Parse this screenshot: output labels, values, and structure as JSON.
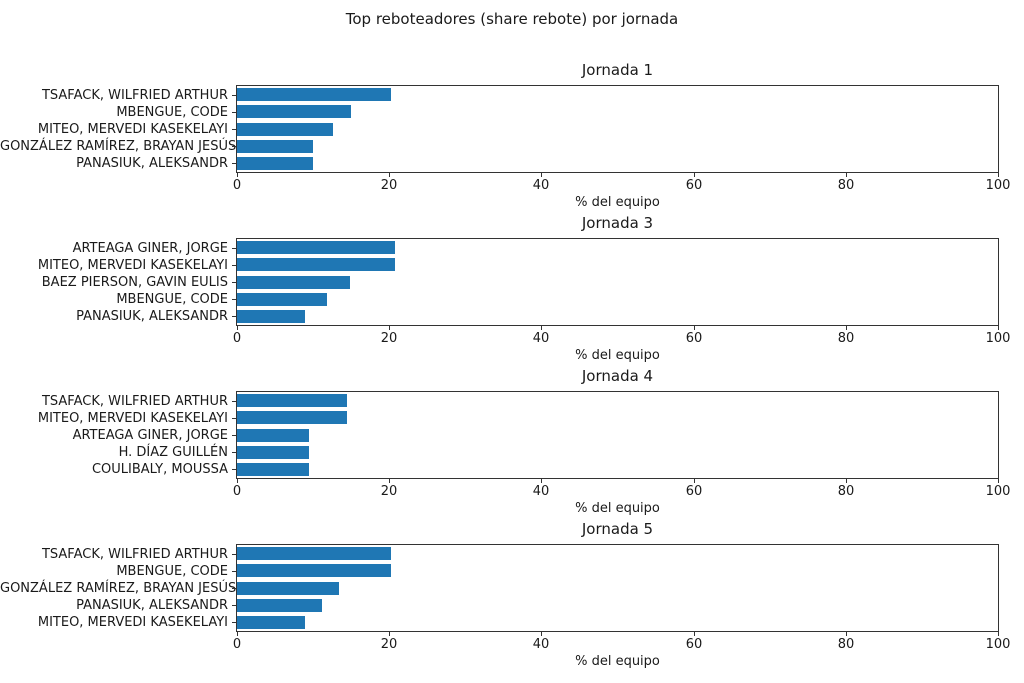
{
  "title": "Top reboteadores (share rebote) por jornada",
  "colors": {
    "bar": "#1f77b4",
    "text": "#1a1a1a",
    "spine": "#333333"
  },
  "chart_data": [
    {
      "type": "bar",
      "orientation": "horizontal",
      "title": "Jornada 1",
      "categories": [
        "TSAFACK, WILFRIED ARTHUR",
        "MBENGUE, CODE",
        "MITEO, MERVEDI KASEKELAYI",
        "GONZÁLEZ RAMÍREZ, BRAYAN JESÚS",
        "PANASIUK, ALEKSANDR"
      ],
      "values": [
        20.2,
        15.0,
        12.6,
        10.0,
        10.0
      ],
      "xlabel": "% del equipo",
      "xlim": [
        0,
        100
      ],
      "xticks": [
        0,
        20,
        40,
        60,
        80,
        100
      ],
      "grid": false
    },
    {
      "type": "bar",
      "orientation": "horizontal",
      "title": "Jornada 3",
      "categories": [
        "ARTEAGA GINER, JORGE",
        "MITEO, MERVEDI KASEKELAYI",
        "BAEZ PIERSON, GAVIN EULIS",
        "MBENGUE, CODE",
        "PANASIUK, ALEKSANDR"
      ],
      "values": [
        20.7,
        20.7,
        14.8,
        11.8,
        8.9
      ],
      "xlabel": "% del equipo",
      "xlim": [
        0,
        100
      ],
      "xticks": [
        0,
        20,
        40,
        60,
        80,
        100
      ],
      "grid": false
    },
    {
      "type": "bar",
      "orientation": "horizontal",
      "title": "Jornada 4",
      "categories": [
        "TSAFACK, WILFRIED ARTHUR",
        "MITEO, MERVEDI KASEKELAYI",
        "ARTEAGA GINER, JORGE",
        "H. DÍAZ GUILLÉN",
        "COULIBALY, MOUSSA"
      ],
      "values": [
        14.4,
        14.4,
        9.5,
        9.5,
        9.5
      ],
      "xlabel": "% del equipo",
      "xlim": [
        0,
        100
      ],
      "xticks": [
        0,
        20,
        40,
        60,
        80,
        100
      ],
      "grid": false
    },
    {
      "type": "bar",
      "orientation": "horizontal",
      "title": "Jornada 5",
      "categories": [
        "TSAFACK, WILFRIED ARTHUR",
        "MBENGUE, CODE",
        "GONZÁLEZ RAMÍREZ, BRAYAN JESÚS",
        "PANASIUK, ALEKSANDR",
        "MITEO, MERVEDI KASEKELAYI"
      ],
      "values": [
        20.2,
        20.2,
        13.4,
        11.2,
        8.9
      ],
      "xlabel": "% del equipo",
      "xlim": [
        0,
        100
      ],
      "xticks": [
        0,
        20,
        40,
        60,
        80,
        100
      ],
      "grid": false
    }
  ]
}
